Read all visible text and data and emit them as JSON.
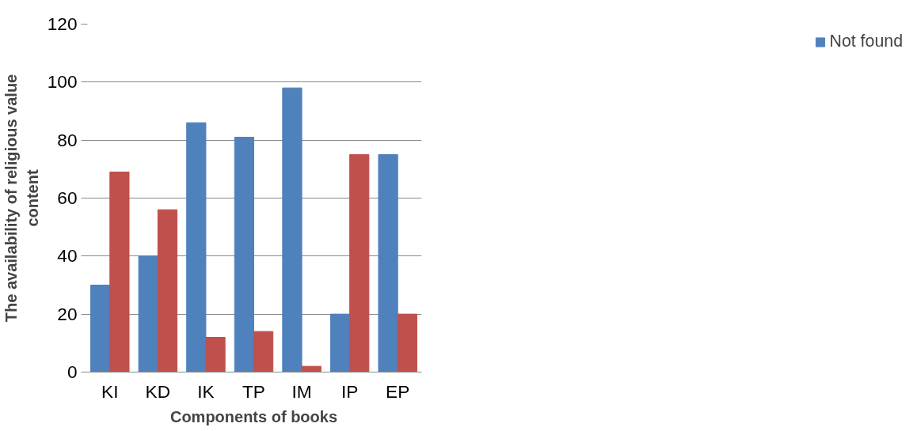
{
  "chart_data": {
    "type": "bar",
    "xlabel": "Components of books",
    "ylabel": "The availability of religious value content",
    "categories": [
      "KI",
      "KD",
      "IK",
      "TP",
      "IM",
      "IP",
      "EP"
    ],
    "series": [
      {
        "name": "Not found",
        "color": "#4f81bd",
        "values": [
          30,
          40,
          86,
          81,
          98,
          20,
          75
        ]
      },
      {
        "color": "#c0504d",
        "values": [
          69,
          56,
          12,
          14,
          2,
          75,
          20
        ]
      }
    ],
    "ylim": [
      0,
      120
    ],
    "yticks": [
      0,
      20,
      40,
      60,
      80,
      100,
      120
    ],
    "grid": "y",
    "legend": "right"
  }
}
